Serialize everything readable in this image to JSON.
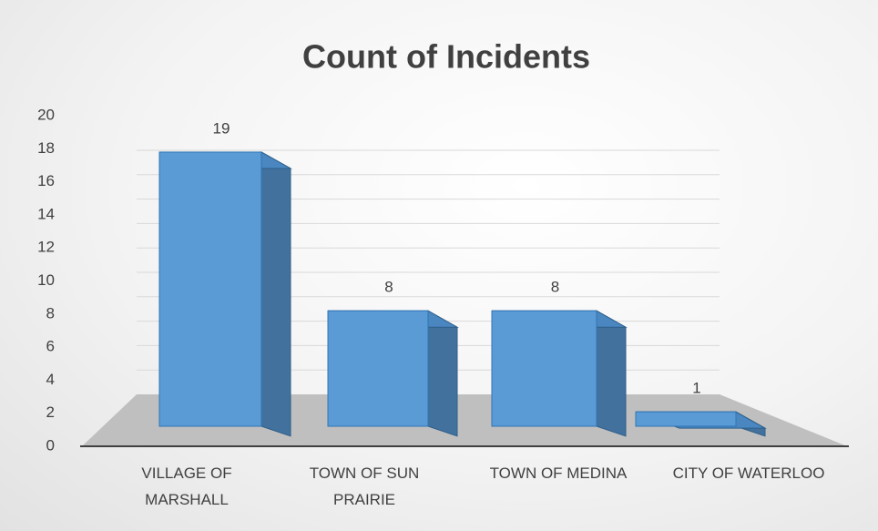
{
  "chart_data": {
    "type": "bar3d",
    "title": "Count of Incidents",
    "categories": [
      "VILLAGE OF MARSHALL",
      "TOWN OF SUN PRAIRIE",
      "TOWN OF MEDINA",
      "CITY OF WATERLOO"
    ],
    "values": [
      19,
      8,
      8,
      1
    ],
    "color": "#5b9bd5",
    "ylim": [
      0,
      20
    ],
    "yticks": [
      0,
      2,
      4,
      6,
      8,
      10,
      12,
      14,
      16,
      18,
      20
    ],
    "grid": true
  }
}
